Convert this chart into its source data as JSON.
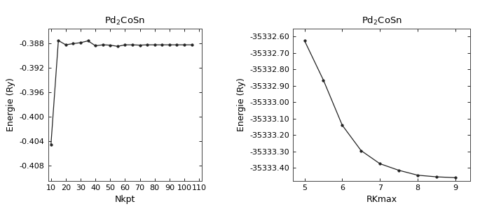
{
  "left_title": "Pd$_2$CoSn",
  "left_xlabel": "Nkpt",
  "left_ylabel": "Energie (Ry)",
  "left_x": [
    10,
    15,
    20,
    25,
    30,
    35,
    40,
    45,
    50,
    55,
    60,
    65,
    70,
    75,
    80,
    85,
    90,
    95,
    100,
    105
  ],
  "left_y": [
    -0.4045,
    -0.3875,
    -0.3882,
    -0.388,
    -0.38785,
    -0.38755,
    -0.38835,
    -0.3882,
    -0.38825,
    -0.38845,
    -0.3882,
    -0.3882,
    -0.38825,
    -0.3882,
    -0.3882,
    -0.3882,
    -0.3882,
    -0.3882,
    -0.3882,
    -0.3882
  ],
  "left_xlim": [
    8,
    112
  ],
  "left_ylim": [
    -0.4105,
    -0.3855
  ],
  "left_yticks": [
    -0.388,
    -0.392,
    -0.396,
    -0.4,
    -0.404,
    -0.408
  ],
  "left_xticks": [
    10,
    20,
    30,
    40,
    50,
    60,
    70,
    80,
    90,
    100,
    110
  ],
  "right_title": "Pd$_2$CoSn",
  "right_xlabel": "RKmax",
  "right_ylabel": "Energie (Ry)",
  "right_x": [
    5,
    5.5,
    6,
    6.5,
    7,
    7.5,
    8,
    8.5,
    9
  ],
  "right_y": [
    -35332.625,
    -35332.865,
    -35333.14,
    -35333.295,
    -35333.375,
    -35333.415,
    -35333.445,
    -35333.455,
    -35333.46
  ],
  "right_xlim": [
    4.7,
    9.4
  ],
  "right_ylim": [
    -35333.48,
    -35332.55
  ],
  "right_yticks": [
    -35332.6,
    -35332.7,
    -35332.8,
    -35332.9,
    -35333.0,
    -35333.1,
    -35333.2,
    -35333.3,
    -35333.4
  ],
  "right_xticks": [
    5,
    6,
    7,
    8,
    9
  ],
  "line_color": "#222222",
  "marker": "o",
  "markersize": 2.5,
  "linewidth": 0.9,
  "bg_color": "#ffffff",
  "plot_bg": "#ffffff"
}
